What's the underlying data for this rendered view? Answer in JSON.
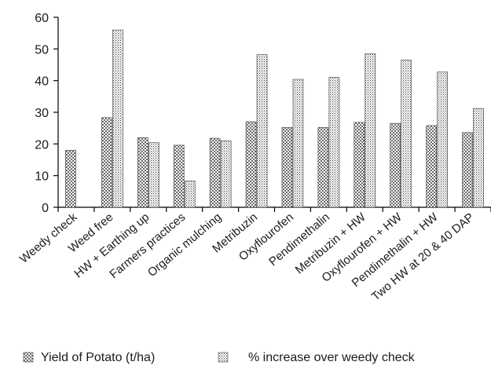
{
  "chart_data": {
    "type": "bar",
    "categories": [
      "Weedy check",
      "Weed free",
      "HW + Earthing up",
      "Farmers practices",
      "Organic mulching",
      "Metribuzin",
      "Oxyflourofen",
      "Pendimethalin",
      "Metribuzin + HW",
      "Oxyflourofen + HW",
      "Pendimethalin + HW",
      "Two HW at 20 & 40 DAP"
    ],
    "series": [
      {
        "name": "Yield of Potato (t/ha)",
        "values": [
          18,
          28.3,
          22,
          19.6,
          21.8,
          27,
          25.2,
          25.2,
          26.8,
          26.5,
          25.8,
          23.6
        ]
      },
      {
        "name": "% increase over weedy check",
        "values": [
          0,
          56,
          20.4,
          8.3,
          21,
          48.2,
          40.4,
          41,
          48.5,
          46.5,
          42.7,
          31.2
        ]
      }
    ],
    "yticks": [
      "0",
      "10",
      "20",
      "30",
      "40",
      "50",
      "60"
    ],
    "ylim": [
      0,
      60
    ],
    "title": "",
    "xlabel": "",
    "ylabel": "",
    "grid": false,
    "legend_position": "bottom"
  }
}
